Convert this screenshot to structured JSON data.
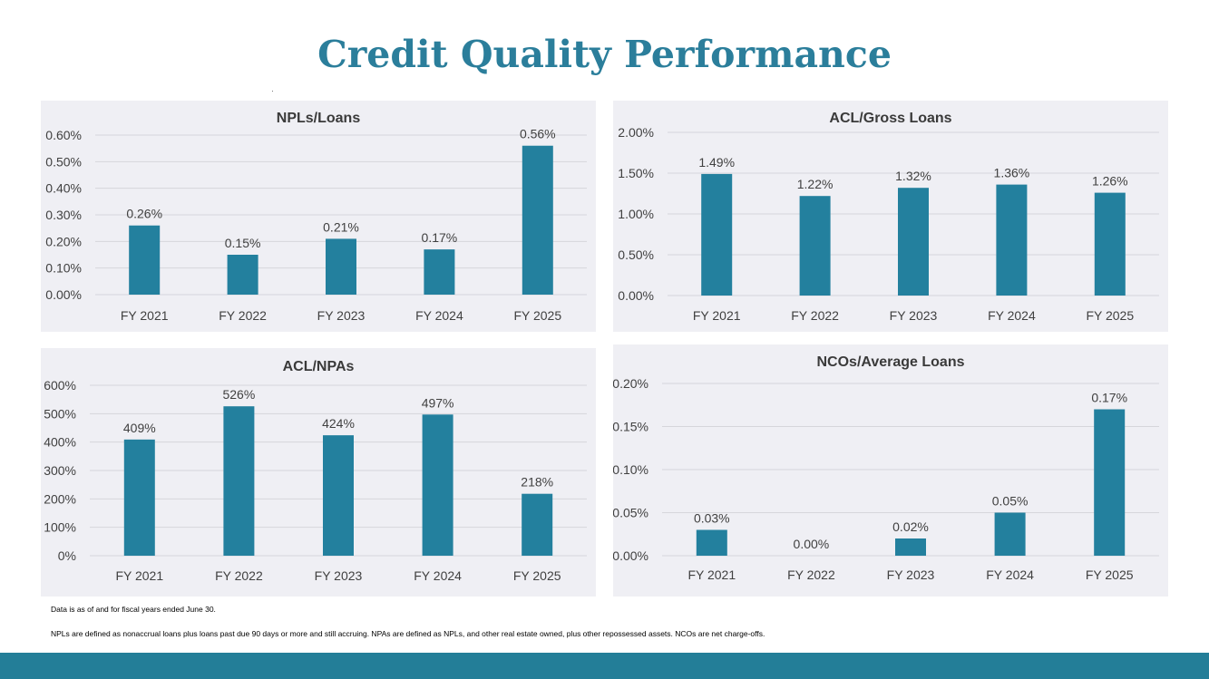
{
  "title": "Credit Quality Performance",
  "colors": {
    "accent": "#2b7e9b",
    "bar": "#23809e",
    "panel_bg": "#efeff4",
    "grid": "#d6d6db",
    "band": "#237e98"
  },
  "footnotes": {
    "line1": "Data is as of and for fiscal years ended June 30.",
    "line2": "NPLs are defined as nonaccrual loans plus loans past due 90 days or more and still accruing. NPAs are defined as NPLs, and other real estate owned, plus other repossessed assets. NCOs are net charge-offs."
  },
  "chart_data": [
    {
      "type": "bar",
      "title": "NPLs/Loans",
      "categories": [
        "FY 2021",
        "FY 2022",
        "FY 2023",
        "FY 2024",
        "FY 2025"
      ],
      "values": [
        0.26,
        0.15,
        0.21,
        0.17,
        0.56
      ],
      "data_labels": [
        "0.26%",
        "0.15%",
        "0.21%",
        "0.17%",
        "0.56%"
      ],
      "yticks": [
        0,
        0.1,
        0.2,
        0.3,
        0.4,
        0.5,
        0.6
      ],
      "ytick_labels": [
        "0.00%",
        "0.10%",
        "0.20%",
        "0.30%",
        "0.40%",
        "0.50%",
        "0.60%"
      ],
      "ylim": [
        0,
        0.6
      ],
      "grid": true
    },
    {
      "type": "bar",
      "title": "ACL/Gross Loans",
      "categories": [
        "FY 2021",
        "FY 2022",
        "FY 2023",
        "FY 2024",
        "FY 2025"
      ],
      "values": [
        1.49,
        1.22,
        1.32,
        1.36,
        1.26
      ],
      "data_labels": [
        "1.49%",
        "1.22%",
        "1.32%",
        "1.36%",
        "1.26%"
      ],
      "yticks": [
        0,
        0.5,
        1.0,
        1.5,
        2.0
      ],
      "ytick_labels": [
        "0.00%",
        "0.50%",
        "1.00%",
        "1.50%",
        "2.00%"
      ],
      "ylim": [
        0,
        2.0
      ],
      "grid": true
    },
    {
      "type": "bar",
      "title": "ACL/NPAs",
      "categories": [
        "FY 2021",
        "FY 2022",
        "FY 2023",
        "FY 2024",
        "FY 2025"
      ],
      "values": [
        409,
        526,
        424,
        497,
        218
      ],
      "data_labels": [
        "409%",
        "526%",
        "424%",
        "497%",
        "218%"
      ],
      "yticks": [
        0,
        100,
        200,
        300,
        400,
        500,
        600
      ],
      "ytick_labels": [
        "0%",
        "100%",
        "200%",
        "300%",
        "400%",
        "500%",
        "600%"
      ],
      "ylim": [
        0,
        600
      ],
      "grid": true
    },
    {
      "type": "bar",
      "title": "NCOs/Average Loans",
      "categories": [
        "FY 2021",
        "FY 2022",
        "FY 2023",
        "FY 2024",
        "FY 2025"
      ],
      "values": [
        0.03,
        0.0,
        0.02,
        0.05,
        0.17
      ],
      "data_labels": [
        "0.03%",
        "0.00%",
        "0.02%",
        "0.05%",
        "0.17%"
      ],
      "yticks": [
        0,
        0.05,
        0.1,
        0.15,
        0.2
      ],
      "ytick_labels": [
        "0.00%",
        "0.05%",
        "0.10%",
        "0.15%",
        "0.20%"
      ],
      "ylim": [
        0,
        0.2
      ],
      "grid": true
    }
  ]
}
